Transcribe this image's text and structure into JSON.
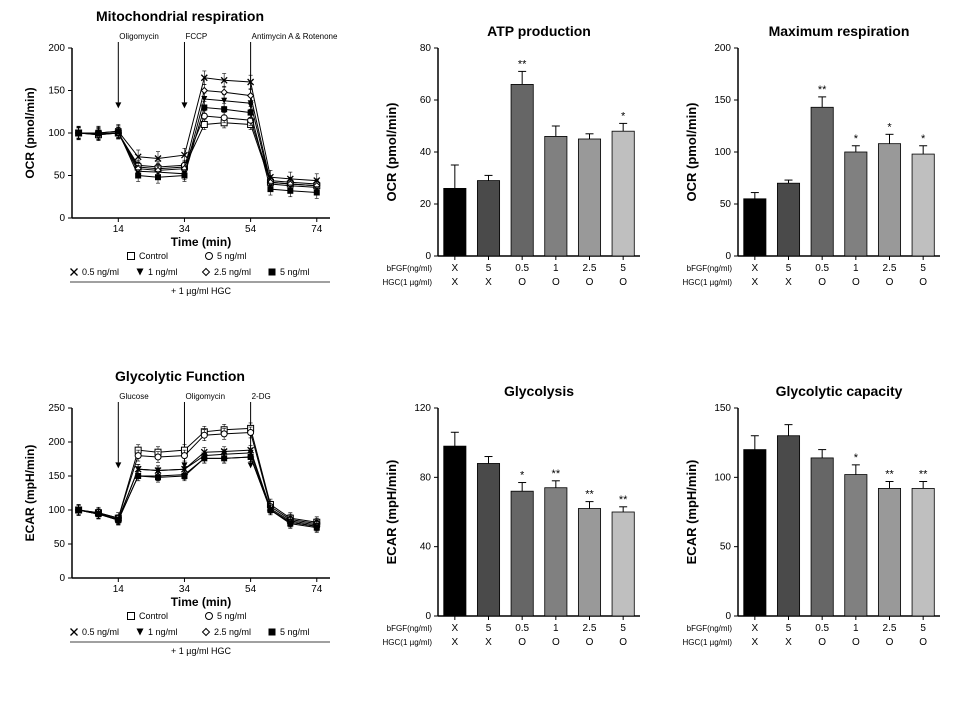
{
  "colors": {
    "bg": "#ffffff",
    "axis": "#000000",
    "text": "#000000",
    "grid": "#000000",
    "line": "#000000"
  },
  "font": {
    "title_pt": 14,
    "axis_pt": 12,
    "tick_pt": 10,
    "legend_pt": 9
  },
  "mito": {
    "title": "Mitochondrial respiration",
    "ylabel": "OCR (pmol/min)",
    "xlabel": "Time (min)",
    "ylim": [
      0,
      200
    ],
    "ytick_step": 50,
    "xticks": [
      14,
      34,
      54,
      74
    ],
    "xrange": [
      0,
      78
    ],
    "injections": [
      {
        "label": "Oligomycin",
        "x": 14
      },
      {
        "label": "FCCP",
        "x": 34
      },
      {
        "label": "Antimycin A & Rotenone",
        "x": 54
      }
    ],
    "time_points": [
      2,
      8,
      14,
      20,
      26,
      34,
      40,
      46,
      54,
      60,
      66,
      74
    ],
    "series": [
      {
        "name": "Control",
        "marker": "open-square",
        "values": [
          100,
          98,
          100,
          60,
          58,
          60,
          110,
          112,
          110,
          42,
          40,
          38
        ],
        "err": 6
      },
      {
        "name": "5 ng/ml",
        "marker": "open-circle",
        "values": [
          100,
          99,
          100,
          62,
          60,
          62,
          120,
          118,
          115,
          44,
          42,
          40
        ],
        "err": 6
      },
      {
        "name": "0.5 ng/ml",
        "marker": "x-mark",
        "values": [
          100,
          100,
          102,
          72,
          70,
          74,
          165,
          162,
          160,
          48,
          46,
          44
        ],
        "err": 8
      },
      {
        "name": "1 ng/ml",
        "marker": "filled-triangle",
        "values": [
          100,
          99,
          100,
          55,
          54,
          52,
          140,
          138,
          135,
          40,
          38,
          36
        ],
        "err": 7
      },
      {
        "name": "2.5 ng/ml",
        "marker": "open-diamond",
        "values": [
          100,
          98,
          100,
          58,
          56,
          58,
          150,
          148,
          144,
          42,
          40,
          38
        ],
        "err": 7
      },
      {
        "name": "5 ng/ml HGC",
        "marker": "filled-square",
        "values": [
          100,
          100,
          102,
          50,
          48,
          50,
          130,
          128,
          124,
          34,
          32,
          30
        ],
        "err": 7
      }
    ],
    "legend_row1": [
      {
        "label": "Control",
        "marker": "open-square"
      },
      {
        "label": "5 ng/ml",
        "marker": "open-circle"
      }
    ],
    "legend_row2": [
      {
        "label": "0.5 ng/ml",
        "marker": "x-mark"
      },
      {
        "label": "1 ng/ml",
        "marker": "filled-triangle"
      },
      {
        "label": "2.5 ng/ml",
        "marker": "open-diamond"
      },
      {
        "label": "5 ng/ml",
        "marker": "filled-square"
      }
    ],
    "legend_footnote": "+ 1 µg/ml HGC"
  },
  "glyco": {
    "title": "Glycolytic Function",
    "ylabel": "ECAR (mpH/min)",
    "xlabel": "Time (min)",
    "ylim": [
      0,
      250
    ],
    "ytick_step": 50,
    "xticks": [
      14,
      34,
      54,
      74
    ],
    "xrange": [
      0,
      78
    ],
    "injections": [
      {
        "label": "Glucose",
        "x": 14
      },
      {
        "label": "Oligomycin",
        "x": 34
      },
      {
        "label": "2-DG",
        "x": 54
      }
    ],
    "time_points": [
      2,
      8,
      14,
      20,
      26,
      34,
      40,
      46,
      54,
      60,
      66,
      74
    ],
    "series": [
      {
        "name": "Control",
        "marker": "open-square",
        "values": [
          100,
          96,
          88,
          188,
          185,
          188,
          215,
          218,
          220,
          108,
          88,
          82
        ],
        "err": 8
      },
      {
        "name": "5 ng/ml",
        "marker": "open-circle",
        "values": [
          100,
          96,
          88,
          180,
          178,
          180,
          210,
          212,
          214,
          105,
          86,
          80
        ],
        "err": 8
      },
      {
        "name": "0.5 ng/ml",
        "marker": "x-mark",
        "values": [
          100,
          95,
          86,
          160,
          158,
          160,
          185,
          186,
          188,
          102,
          84,
          78
        ],
        "err": 7
      },
      {
        "name": "1 ng/ml",
        "marker": "filled-triangle",
        "values": [
          100,
          94,
          86,
          160,
          158,
          160,
          180,
          182,
          184,
          100,
          82,
          76
        ],
        "err": 7
      },
      {
        "name": "2.5 ng/ml",
        "marker": "open-diamond",
        "values": [
          100,
          94,
          85,
          150,
          150,
          152,
          176,
          176,
          178,
          100,
          82,
          76
        ],
        "err": 7
      },
      {
        "name": "5 ng/ml HGC",
        "marker": "filled-square",
        "values": [
          100,
          94,
          85,
          150,
          148,
          150,
          176,
          176,
          178,
          100,
          80,
          74
        ],
        "err": 7
      }
    ],
    "legend_row1": [
      {
        "label": "Control",
        "marker": "open-square"
      },
      {
        "label": "5 ng/ml",
        "marker": "open-circle"
      }
    ],
    "legend_row2": [
      {
        "label": "0.5 ng/ml",
        "marker": "x-mark"
      },
      {
        "label": "1 ng/ml",
        "marker": "filled-triangle"
      },
      {
        "label": "2.5 ng/ml",
        "marker": "open-diamond"
      },
      {
        "label": "5 ng/ml",
        "marker": "filled-square"
      }
    ],
    "legend_footnote": "+ 1 µg/ml HGC"
  },
  "barcharts": {
    "xaxis": {
      "row1_label": "bFGF(ng/ml)",
      "row2_label": "HGC(1 µg/ml)",
      "categories": [
        {
          "f": "X",
          "h": "X"
        },
        {
          "f": "5",
          "h": "X"
        },
        {
          "f": "0.5",
          "h": "O"
        },
        {
          "f": "1",
          "h": "O"
        },
        {
          "f": "2.5",
          "h": "O"
        },
        {
          "f": "5",
          "h": "O"
        }
      ]
    },
    "bar_colors": [
      "#000000",
      "#4a4a4a",
      "#666666",
      "#808080",
      "#999999",
      "#bfbfbf"
    ],
    "bar_width": 0.66,
    "atp": {
      "title": "ATP production",
      "ylabel": "OCR (pmol/min)",
      "ylim": [
        0,
        80
      ],
      "ytick_step": 20,
      "values": [
        26,
        29,
        66,
        46,
        45,
        48
      ],
      "err": [
        9,
        2,
        5,
        4,
        2,
        3
      ],
      "sig": [
        "",
        "",
        "**",
        "",
        "",
        "*"
      ]
    },
    "maxresp": {
      "title": "Maximum respiration",
      "ylabel": "OCR (pmol/min)",
      "ylim": [
        0,
        200
      ],
      "ytick_step": 50,
      "values": [
        55,
        70,
        143,
        100,
        108,
        98
      ],
      "err": [
        6,
        3,
        10,
        6,
        9,
        8
      ],
      "sig": [
        "",
        "",
        "**",
        "*",
        "*",
        "*"
      ]
    },
    "glycolysis": {
      "title": "Glycolysis",
      "ylabel": "ECAR (mpH/min)",
      "ylim": [
        0,
        120
      ],
      "ytick_step": 40,
      "values": [
        98,
        88,
        72,
        74,
        62,
        60
      ],
      "err": [
        8,
        4,
        5,
        4,
        4,
        3
      ],
      "sig": [
        "",
        "",
        "*",
        "**",
        "**",
        "**"
      ]
    },
    "glycap": {
      "title": "Glycolytic capacity",
      "ylabel": "ECAR (mpH/min)",
      "ylim": [
        0,
        150
      ],
      "ytick_step": 50,
      "values": [
        120,
        130,
        114,
        102,
        92,
        92
      ],
      "err": [
        10,
        8,
        6,
        7,
        5,
        5
      ],
      "sig": [
        "",
        "",
        "",
        "*",
        "**",
        "**"
      ]
    }
  }
}
